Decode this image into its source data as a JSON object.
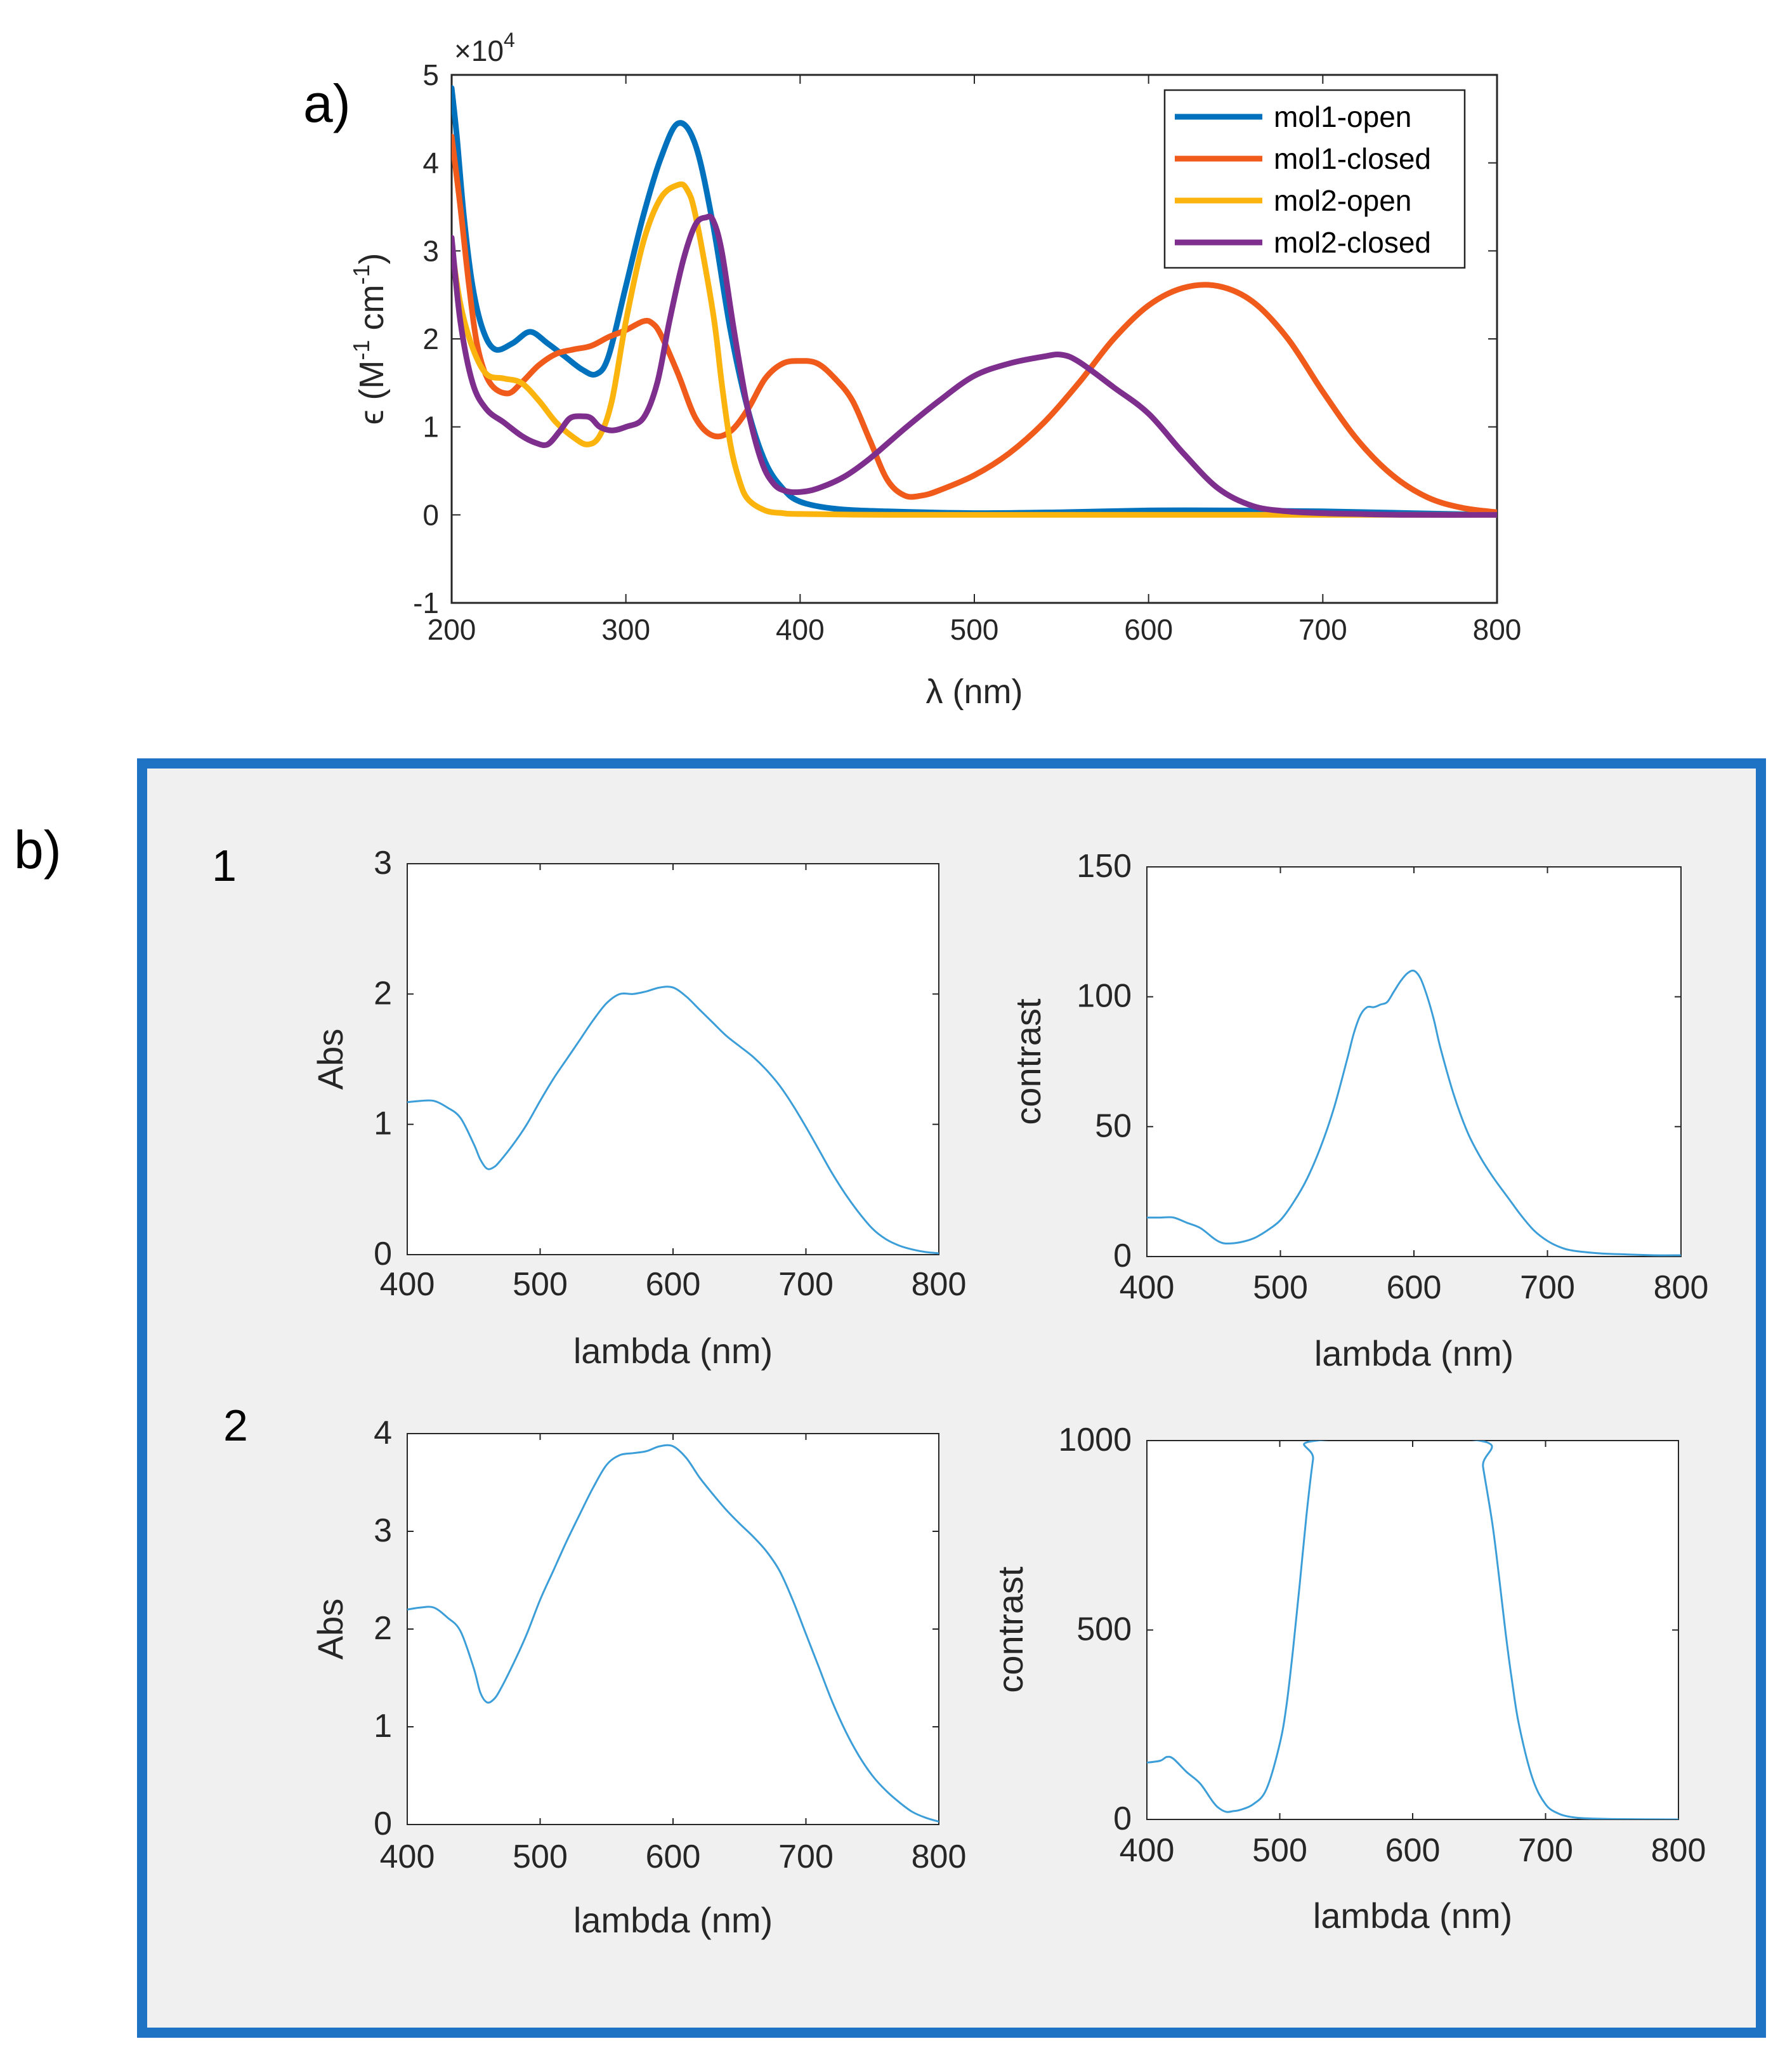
{
  "panel_a_label": "a)",
  "panel_b_label": "b)",
  "row_labels": [
    "1",
    "2"
  ],
  "colors": {
    "mol1_open": "#0072BD",
    "mol1_closed": "#F05A1A",
    "mol2_open": "#FBB40E",
    "mol2_closed": "#7E2F8E",
    "thin_line": "#3C9ED8",
    "panel_b_border": "#1F73C4",
    "panel_b_bg": "#F0F0F0"
  },
  "chart_data": [
    {
      "id": "a",
      "type": "line",
      "title": "",
      "xlabel": "λ (nm)",
      "ylabel_prefix": "ϵ (M",
      "ylabel_sup1": "-1",
      "ylabel_mid": " cm",
      "ylabel_sup2": "-1",
      "ylabel_suffix": ")",
      "y_multiplier": "×10",
      "y_multiplier_exp": "4",
      "xlim": [
        200,
        800
      ],
      "ylim": [
        -1,
        5
      ],
      "xticks": [
        200,
        300,
        400,
        500,
        600,
        700,
        800
      ],
      "yticks": [
        -1,
        0,
        1,
        2,
        3,
        4,
        5
      ],
      "legend_position": "top-right",
      "series": [
        {
          "name": "mol1-open",
          "color_key": "mol1_open",
          "x": [
            200,
            203,
            207,
            212,
            218,
            225,
            235,
            245,
            255,
            265,
            275,
            283,
            290,
            300,
            310,
            320,
            330,
            340,
            350,
            360,
            370,
            380,
            390,
            400,
            420,
            450,
            500,
            550,
            600,
            650,
            700,
            750,
            800
          ],
          "y": [
            4.85,
            4.3,
            3.4,
            2.6,
            2.1,
            1.88,
            1.95,
            2.08,
            1.95,
            1.8,
            1.65,
            1.6,
            1.8,
            2.6,
            3.4,
            4.05,
            4.45,
            4.2,
            3.3,
            2.1,
            1.2,
            0.6,
            0.3,
            0.15,
            0.07,
            0.04,
            0.02,
            0.03,
            0.05,
            0.05,
            0.04,
            0.02,
            0.0
          ]
        },
        {
          "name": "mol1-closed",
          "color_key": "mol1_closed",
          "x": [
            200,
            205,
            210,
            215,
            222,
            232,
            240,
            250,
            260,
            270,
            280,
            290,
            300,
            310,
            315,
            320,
            330,
            340,
            350,
            360,
            370,
            380,
            390,
            400,
            410,
            420,
            430,
            440,
            450,
            460,
            470,
            480,
            500,
            520,
            540,
            560,
            580,
            600,
            620,
            640,
            660,
            680,
            700,
            720,
            740,
            760,
            780,
            800
          ],
          "y": [
            4.3,
            3.5,
            2.6,
            1.9,
            1.5,
            1.38,
            1.5,
            1.7,
            1.83,
            1.88,
            1.92,
            2.02,
            2.1,
            2.2,
            2.18,
            2.05,
            1.6,
            1.1,
            0.9,
            0.95,
            1.2,
            1.55,
            1.72,
            1.75,
            1.72,
            1.55,
            1.3,
            0.85,
            0.4,
            0.22,
            0.22,
            0.28,
            0.45,
            0.7,
            1.05,
            1.5,
            2.0,
            2.38,
            2.58,
            2.6,
            2.42,
            2.0,
            1.4,
            0.85,
            0.45,
            0.2,
            0.08,
            0.03
          ]
        },
        {
          "name": "mol2-open",
          "color_key": "mol2_open",
          "x": [
            200,
            205,
            212,
            220,
            230,
            240,
            250,
            260,
            270,
            278,
            285,
            292,
            300,
            310,
            320,
            330,
            335,
            340,
            350,
            355,
            360,
            365,
            370,
            380,
            390,
            400,
            450,
            500,
            550,
            600,
            650,
            700,
            800
          ],
          "y": [
            3.05,
            2.4,
            1.9,
            1.6,
            1.55,
            1.5,
            1.3,
            1.05,
            0.88,
            0.8,
            0.9,
            1.3,
            2.2,
            3.1,
            3.6,
            3.75,
            3.7,
            3.4,
            2.3,
            1.5,
            0.8,
            0.4,
            0.18,
            0.05,
            0.02,
            0.01,
            0.0,
            0.0,
            0.0,
            0.0,
            0.0,
            0.0,
            0.0
          ]
        },
        {
          "name": "mol2-closed",
          "color_key": "mol2_closed",
          "x": [
            200,
            205,
            212,
            220,
            230,
            240,
            248,
            255,
            262,
            268,
            275,
            280,
            285,
            292,
            300,
            310,
            318,
            325,
            333,
            340,
            346,
            350,
            355,
            362,
            370,
            378,
            385,
            392,
            400,
            410,
            425,
            440,
            460,
            480,
            500,
            520,
            540,
            550,
            560,
            580,
            600,
            620,
            640,
            660,
            680,
            700,
            720,
            750,
            800
          ],
          "y": [
            3.15,
            2.2,
            1.5,
            1.2,
            1.05,
            0.9,
            0.82,
            0.8,
            0.95,
            1.1,
            1.12,
            1.1,
            1.0,
            0.96,
            1.0,
            1.1,
            1.5,
            2.2,
            2.9,
            3.3,
            3.38,
            3.35,
            3.0,
            2.1,
            1.2,
            0.6,
            0.35,
            0.27,
            0.26,
            0.3,
            0.43,
            0.64,
            0.98,
            1.3,
            1.58,
            1.72,
            1.8,
            1.82,
            1.74,
            1.45,
            1.15,
            0.7,
            0.3,
            0.1,
            0.04,
            0.02,
            0.01,
            0.0,
            0.0
          ]
        }
      ]
    },
    {
      "id": "b1-abs",
      "type": "line",
      "xlabel": "lambda (nm)",
      "ylabel": "Abs",
      "xlim": [
        400,
        800
      ],
      "ylim": [
        0,
        3
      ],
      "xticks": [
        400,
        500,
        600,
        700,
        800
      ],
      "yticks": [
        0,
        1,
        2,
        3
      ],
      "series": [
        {
          "name": "Abs",
          "x": [
            400,
            410,
            420,
            430,
            440,
            450,
            455,
            460,
            465,
            470,
            480,
            490,
            500,
            510,
            520,
            530,
            540,
            550,
            560,
            570,
            580,
            590,
            600,
            610,
            620,
            630,
            640,
            650,
            660,
            670,
            680,
            690,
            700,
            710,
            720,
            730,
            740,
            750,
            760,
            770,
            780,
            790,
            800
          ],
          "y": [
            1.17,
            1.18,
            1.18,
            1.13,
            1.05,
            0.85,
            0.73,
            0.66,
            0.67,
            0.72,
            0.85,
            1.0,
            1.18,
            1.35,
            1.5,
            1.65,
            1.8,
            1.93,
            2.0,
            2.0,
            2.02,
            2.05,
            2.05,
            1.98,
            1.88,
            1.78,
            1.68,
            1.6,
            1.52,
            1.42,
            1.3,
            1.15,
            0.98,
            0.8,
            0.62,
            0.46,
            0.32,
            0.2,
            0.12,
            0.07,
            0.04,
            0.02,
            0.01
          ]
        }
      ]
    },
    {
      "id": "b1-contrast",
      "type": "line",
      "xlabel": "lambda (nm)",
      "ylabel": "contrast",
      "xlim": [
        400,
        800
      ],
      "ylim": [
        0,
        150
      ],
      "xticks": [
        400,
        500,
        600,
        700,
        800
      ],
      "yticks": [
        0,
        50,
        100,
        150
      ],
      "series": [
        {
          "name": "contrast",
          "x": [
            400,
            410,
            420,
            430,
            440,
            450,
            455,
            460,
            470,
            480,
            490,
            500,
            510,
            520,
            530,
            540,
            550,
            555,
            560,
            565,
            570,
            575,
            580,
            585,
            590,
            595,
            600,
            605,
            610,
            615,
            620,
            630,
            640,
            650,
            660,
            670,
            680,
            690,
            700,
            710,
            720,
            740,
            760,
            780,
            800
          ],
          "y": [
            15,
            15,
            15,
            13,
            11,
            7,
            5.5,
            5,
            5.5,
            7,
            10,
            14,
            21,
            30,
            42,
            57,
            76,
            86,
            93,
            96,
            96,
            97,
            98,
            102,
            106,
            109,
            110,
            107,
            100,
            91,
            80,
            62,
            48,
            38,
            30,
            23,
            16,
            10,
            6,
            3.5,
            2.2,
            1.2,
            0.8,
            0.5,
            0.5
          ]
        }
      ]
    },
    {
      "id": "b2-abs",
      "type": "line",
      "xlabel": "lambda (nm)",
      "ylabel": "Abs",
      "xlim": [
        400,
        800
      ],
      "ylim": [
        0,
        4
      ],
      "xticks": [
        400,
        500,
        600,
        700,
        800
      ],
      "yticks": [
        0,
        1,
        2,
        3,
        4
      ],
      "series": [
        {
          "name": "Abs",
          "x": [
            400,
            410,
            420,
            430,
            440,
            450,
            455,
            460,
            465,
            470,
            480,
            490,
            500,
            510,
            520,
            530,
            540,
            550,
            560,
            570,
            580,
            590,
            600,
            610,
            620,
            630,
            640,
            650,
            660,
            670,
            680,
            690,
            700,
            710,
            720,
            730,
            740,
            750,
            760,
            770,
            780,
            790,
            800
          ],
          "y": [
            2.2,
            2.22,
            2.22,
            2.12,
            1.98,
            1.6,
            1.35,
            1.25,
            1.28,
            1.38,
            1.65,
            1.95,
            2.3,
            2.6,
            2.9,
            3.18,
            3.45,
            3.68,
            3.78,
            3.8,
            3.82,
            3.87,
            3.87,
            3.75,
            3.55,
            3.38,
            3.22,
            3.08,
            2.95,
            2.8,
            2.6,
            2.3,
            1.95,
            1.6,
            1.25,
            0.95,
            0.7,
            0.5,
            0.35,
            0.23,
            0.13,
            0.07,
            0.03
          ]
        }
      ]
    },
    {
      "id": "b2-contrast",
      "type": "line",
      "xlabel": "lambda (nm)",
      "ylabel": "contrast",
      "xlim": [
        400,
        800
      ],
      "ylim": [
        0,
        1000
      ],
      "xticks": [
        400,
        500,
        600,
        700,
        800
      ],
      "yticks": [
        0,
        500,
        1000
      ],
      "series": [
        {
          "name": "contrast",
          "x": [
            400,
            410,
            415,
            420,
            430,
            440,
            450,
            455,
            460,
            465,
            470,
            480,
            490,
            500,
            505,
            510,
            515,
            520,
            525,
            528,
            650,
            653,
            660,
            665,
            670,
            675,
            680,
            690,
            700,
            710,
            720,
            730,
            750,
            800
          ],
          "y": [
            150,
            155,
            165,
            160,
            125,
            95,
            45,
            28,
            20,
            22,
            25,
            40,
            80,
            200,
            300,
            450,
            620,
            800,
            950,
            1000,
            1000,
            930,
            780,
            640,
            490,
            360,
            250,
            110,
            40,
            15,
            6,
            3,
            1,
            0
          ]
        }
      ]
    }
  ]
}
